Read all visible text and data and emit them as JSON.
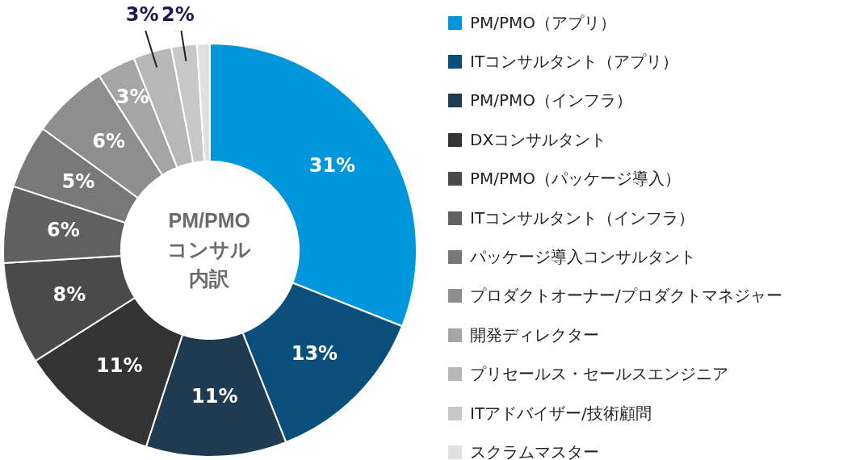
{
  "chart_data": {
    "type": "donut",
    "title": "PM/PMOコンサル内訳",
    "categories": [
      "PM/PMO（アプリ）",
      "ITコンサルタント（アプリ）",
      "PM/PMO（インフラ）",
      "DXコンサルタント",
      "PM/PMO（パッケージ導入）",
      "ITコンサルタント（インフラ）",
      "パッケージ導入コンサルタント",
      "プロダクトオーナー/プロダクトマネジャー",
      "開発ディレクター",
      "プリセールス・セールスエンジニア",
      "ITアドバイザー/技術顧問",
      "スクラムマスター"
    ],
    "values": [
      31,
      13,
      11,
      11,
      8,
      6,
      5,
      6,
      3,
      3,
      2,
      1
    ],
    "value_labels": [
      "31%",
      "13%",
      "11%",
      "11%",
      "8%",
      "6%",
      "5%",
      "6%",
      "3%",
      "3%",
      "2%",
      null
    ],
    "colors": [
      "#0096db",
      "#0a4e7c",
      "#1f3b52",
      "#333333",
      "#4a4a4a",
      "#606060",
      "#787878",
      "#8e8e8e",
      "#a5a5a5",
      "#b7b7b7",
      "#c8c8c8",
      "#e0e0e0"
    ],
    "legend": "right"
  }
}
